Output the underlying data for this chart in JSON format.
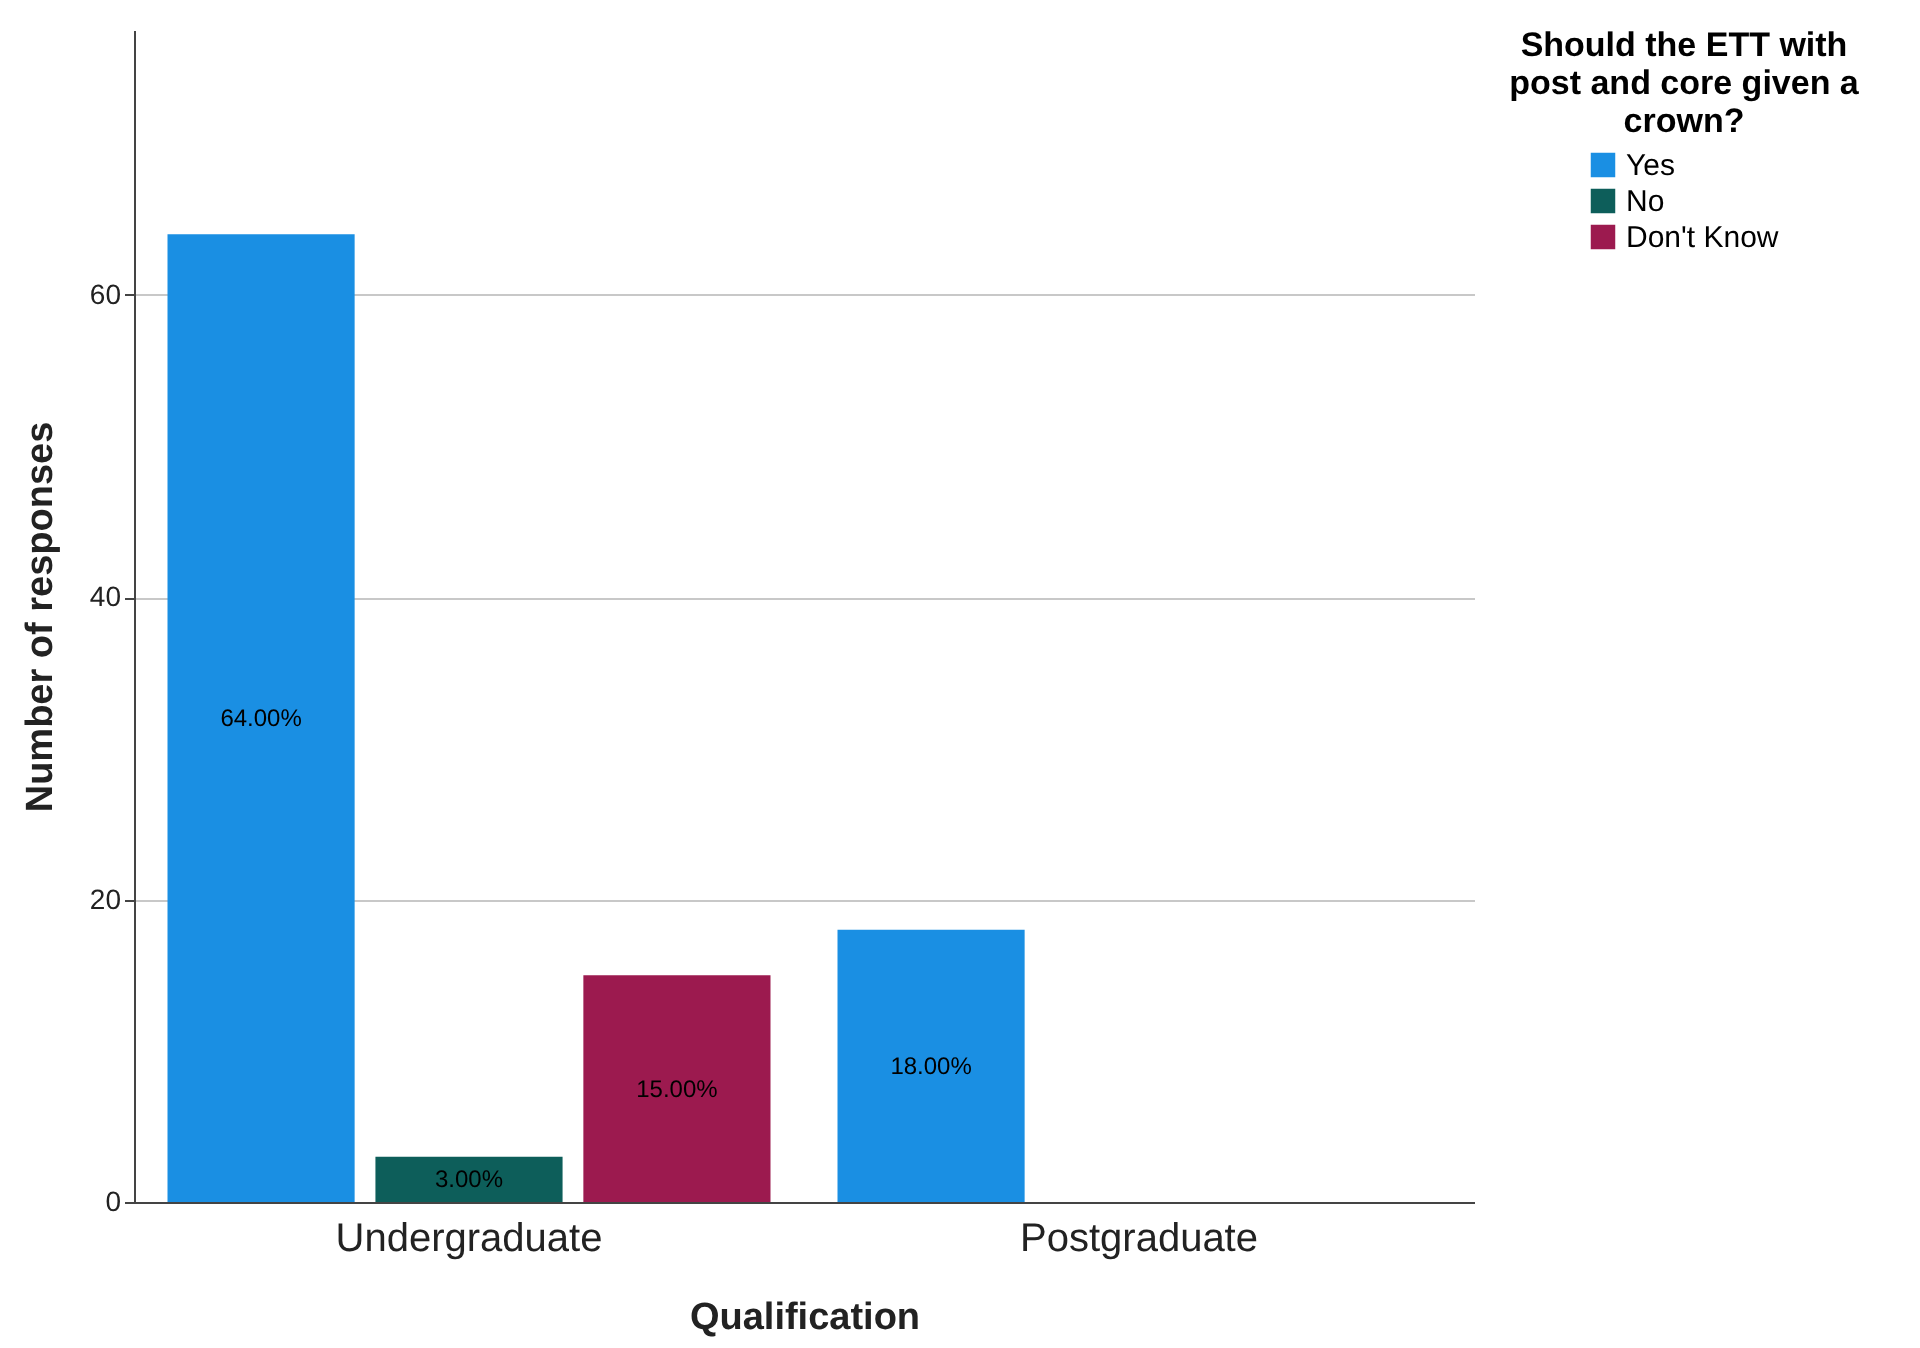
{
  "chart_data": {
    "type": "bar",
    "xlabel": "Qualification",
    "ylabel": "Number of responses",
    "legend_title": "Should the ETT with post and core given a crown?",
    "categories": [
      "Undergraduate",
      "Postgraduate"
    ],
    "series": [
      {
        "name": "Yes",
        "color": "#1a8fe3",
        "values": [
          64,
          18
        ],
        "value_labels": [
          "64.00%",
          "18.00%"
        ]
      },
      {
        "name": "No",
        "color": "#0d5e5a",
        "values": [
          3,
          null
        ],
        "value_labels": [
          "3.00%",
          null
        ]
      },
      {
        "name": "Don't Know",
        "color": "#9c1a4f",
        "values": [
          15,
          null
        ],
        "value_labels": [
          "15.00%",
          null
        ]
      }
    ],
    "ylim": [
      0,
      77.5
    ],
    "yticks": [
      0,
      20,
      40,
      60
    ],
    "grid": "y",
    "legend": "top right"
  }
}
